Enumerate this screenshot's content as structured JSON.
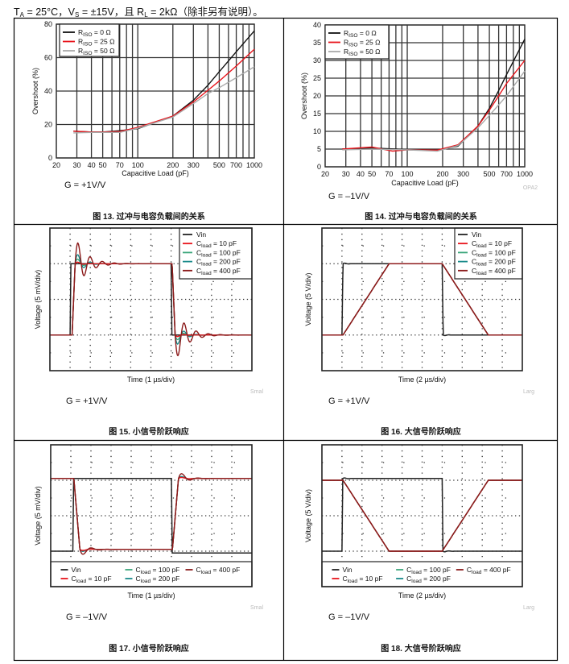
{
  "header": {
    "t1": "T",
    "s1": "A",
    "t2": " = 25°C，V",
    "s2": "S",
    "t3": " = ±15V，且 R",
    "s3": "L",
    "t4": " = 2kΩ（除非另有说明）。"
  },
  "chart_data": [
    {
      "type": "line",
      "title": "图 13. 过冲与电容负载间的关系",
      "note": "G = +1V/V",
      "watermark": "",
      "xlabel": "Capacitive Load (pF)",
      "ylabel": "Overshoot (%)",
      "xscale": "log",
      "xlim": [
        20,
        1000
      ],
      "ylim": [
        0,
        80
      ],
      "xticks": [
        20,
        30,
        40,
        50,
        70,
        100,
        200,
        300,
        500,
        700,
        1000
      ],
      "yticks": [
        0,
        20,
        40,
        60,
        80
      ],
      "grid_x": [
        30,
        40,
        50,
        60,
        70,
        80,
        90,
        100,
        200,
        300,
        400,
        500,
        600,
        700,
        800,
        900
      ],
      "legend": "top-left",
      "series": [
        {
          "main": "R",
          "sub": "ISO",
          "rest": " = 0 Ω",
          "color": "#111111",
          "points": [
            [
              28,
              16
            ],
            [
              40,
              15.5
            ],
            [
              50,
              15.5
            ],
            [
              70,
              16.3
            ],
            [
              100,
              17.5
            ],
            [
              200,
              25
            ],
            [
              300,
              34.5
            ],
            [
              400,
              43.5
            ],
            [
              500,
              51.5
            ],
            [
              700,
              63.5
            ],
            [
              1000,
              76
            ]
          ]
        },
        {
          "main": "R",
          "sub": "ISO",
          "rest": " = 25 Ω",
          "color": "#e8141b",
          "points": [
            [
              28,
              16
            ],
            [
              40,
              15.5
            ],
            [
              50,
              15.5
            ],
            [
              70,
              15.8
            ],
            [
              100,
              18.3
            ],
            [
              200,
              25
            ],
            [
              300,
              33.5
            ],
            [
              400,
              40.5
            ],
            [
              500,
              46
            ],
            [
              700,
              55
            ],
            [
              1000,
              65
            ]
          ]
        },
        {
          "main": "R",
          "sub": "ISO",
          "rest": " = 50 Ω",
          "color": "#aaaaaa",
          "points": [
            [
              28,
              15
            ],
            [
              40,
              15.3
            ],
            [
              50,
              15.3
            ],
            [
              70,
              15.3
            ],
            [
              100,
              17.8
            ],
            [
              200,
              24.5
            ],
            [
              300,
              32.5
            ],
            [
              400,
              38.5
            ],
            [
              500,
              42
            ],
            [
              700,
              48
            ],
            [
              1000,
              54.5
            ]
          ]
        }
      ]
    },
    {
      "type": "line",
      "title": "图 14. 过冲与电容负载间的关系",
      "note": "G = –1V/V",
      "watermark": "OPA2",
      "xlabel": "Capacitive Load (pF)",
      "ylabel": "Overshoot (%)",
      "xscale": "log",
      "xlim": [
        20,
        1000
      ],
      "ylim": [
        0,
        40
      ],
      "xticks": [
        20,
        30,
        40,
        50,
        70,
        100,
        200,
        300,
        500,
        700,
        1000
      ],
      "yticks": [
        0,
        5,
        10,
        15,
        20,
        25,
        30,
        35,
        40
      ],
      "grid_x": [
        30,
        40,
        50,
        60,
        70,
        80,
        90,
        100,
        200,
        300,
        400,
        500,
        600,
        700,
        800,
        900
      ],
      "legend": "top-left",
      "series": [
        {
          "main": "R",
          "sub": "ISO",
          "rest": " = 0 Ω",
          "color": "#111111",
          "points": [
            [
              28,
              5
            ],
            [
              50,
              5.3
            ],
            [
              80,
              5
            ],
            [
              100,
              4.8
            ],
            [
              180,
              4.7
            ],
            [
              200,
              5
            ],
            [
              270,
              5.8
            ],
            [
              400,
              11.5
            ],
            [
              500,
              16.5
            ],
            [
              600,
              21.5
            ],
            [
              700,
              26
            ],
            [
              1000,
              36
            ]
          ]
        },
        {
          "main": "R",
          "sub": "ISO",
          "rest": " = 25 Ω",
          "color": "#e8141b",
          "points": [
            [
              28,
              5
            ],
            [
              50,
              5.6
            ],
            [
              75,
              4.4
            ],
            [
              100,
              4.8
            ],
            [
              180,
              4.7
            ],
            [
              270,
              6.2
            ],
            [
              400,
              11.5
            ],
            [
              500,
              16
            ],
            [
              600,
              20
            ],
            [
              700,
              23.5
            ],
            [
              1000,
              30
            ]
          ]
        },
        {
          "main": "R",
          "sub": "ISO",
          "rest": " = 50 Ω",
          "color": "#aaaaaa",
          "points": [
            [
              28,
              4.8
            ],
            [
              50,
              5
            ],
            [
              100,
              4.8
            ],
            [
              180,
              4.4
            ],
            [
              270,
              6
            ],
            [
              400,
              11
            ],
            [
              500,
              14.5
            ],
            [
              700,
              20
            ],
            [
              1000,
              27
            ]
          ]
        }
      ]
    },
    {
      "type": "line",
      "title": "图 15. 小信号阶跃响应",
      "note": "G = +1V/V",
      "watermark": "Smal",
      "xlabel": "Time (1 µs/div)",
      "ylabel": "Voltage (5 mV/div)",
      "xlim": [
        0,
        10
      ],
      "ylim": [
        0,
        8
      ],
      "legend": "top-right",
      "series": [
        {
          "main": "Vin",
          "sub": "",
          "rest": "",
          "color": "#222222",
          "start": 2,
          "edges": [
            [
              1.0,
              6
            ],
            [
              6.0,
              2
            ]
          ],
          "rise": 0.04,
          "overshoot": 0,
          "period": 0.6,
          "decay": 0.3
        },
        {
          "main": "C",
          "sub": "load",
          "rest": " = 10 pF",
          "color": "#e8141b",
          "start": 2,
          "edges": [
            [
              1.1,
              6
            ],
            [
              6.05,
              2
            ]
          ],
          "rise": 0.15,
          "overshoot": 0.15,
          "period": 0.6,
          "decay": 0.25
        },
        {
          "main": "C",
          "sub": "load",
          "rest": " = 100 pF",
          "color": "#3aa57a",
          "start": 2,
          "edges": [
            [
              1.1,
              6
            ],
            [
              6.05,
              2
            ]
          ],
          "rise": 0.15,
          "overshoot": 0.4,
          "period": 0.6,
          "decay": 0.3
        },
        {
          "main": "C",
          "sub": "load",
          "rest": " = 200 pF",
          "color": "#1a8a8a",
          "start": 2,
          "edges": [
            [
              1.1,
              6
            ],
            [
              6.05,
              2
            ]
          ],
          "rise": 0.15,
          "overshoot": 0.75,
          "period": 0.6,
          "decay": 0.35
        },
        {
          "main": "C",
          "sub": "load",
          "rest": " = 400 pF",
          "color": "#8b1a1a",
          "start": 2,
          "edges": [
            [
              1.1,
              6
            ],
            [
              6.05,
              2
            ]
          ],
          "rise": 0.15,
          "overshoot": 1.5,
          "period": 0.6,
          "decay": 0.55
        }
      ]
    },
    {
      "type": "line",
      "title": "图 16. 大信号阶跃响应",
      "note": "G = +1V/V",
      "watermark": "Larg",
      "xlabel": "Time (2 µs/div)",
      "ylabel": "Voltage (5 V/div)",
      "xlim": [
        0,
        10
      ],
      "ylim": [
        0,
        8
      ],
      "legend": "top-right",
      "series": [
        {
          "main": "Vin",
          "sub": "",
          "rest": "",
          "color": "#222222",
          "start": 2,
          "edges": [
            [
              1.0,
              6
            ],
            [
              6.0,
              2
            ]
          ],
          "rise": 0.05,
          "overshoot": 0.05,
          "period": 0.4,
          "decay": 0.2
        },
        {
          "main": "C",
          "sub": "load",
          "rest": " = 10 pF",
          "color": "#e8141b",
          "start": 2,
          "edges": [
            [
              1.05,
              6
            ],
            [
              6.0,
              2
            ]
          ],
          "rise": 2.3,
          "overshoot": 0,
          "period": 0.6,
          "decay": 0.3
        },
        {
          "main": "C",
          "sub": "load",
          "rest": " = 100 pF",
          "color": "#3aa57a",
          "start": 2,
          "edges": [
            [
              1.05,
              6
            ],
            [
              6.0,
              2
            ]
          ],
          "rise": 2.3,
          "overshoot": 0,
          "period": 0.6,
          "decay": 0.3
        },
        {
          "main": "C",
          "sub": "load",
          "rest": " = 200 pF",
          "color": "#1a8a8a",
          "start": 2,
          "edges": [
            [
              1.05,
              6
            ],
            [
              6.0,
              2
            ]
          ],
          "rise": 2.3,
          "overshoot": 0,
          "period": 0.6,
          "decay": 0.3
        },
        {
          "main": "C",
          "sub": "load",
          "rest": " = 400 pF",
          "color": "#8b1a1a",
          "start": 2,
          "edges": [
            [
              1.05,
              6
            ],
            [
              6.0,
              2
            ]
          ],
          "rise": 2.3,
          "overshoot": 0,
          "period": 0.6,
          "decay": 0.3
        }
      ]
    },
    {
      "type": "line",
      "title": "图 17. 小信号阶跃响应",
      "note": "G = –1V/V",
      "watermark": "Smal",
      "xlabel": "Time (1 µs/div)",
      "ylabel": "Voltage (5 mV/div)",
      "xlim": [
        0,
        10
      ],
      "ylim": [
        0,
        8
      ],
      "legend": "bottom",
      "series": [
        {
          "main": "Vin",
          "sub": "",
          "rest": "",
          "color": "#222222",
          "start": 2,
          "edges": [
            [
              1.1,
              6.1
            ],
            [
              6.0,
              1.9
            ]
          ],
          "rise": 0.04,
          "overshoot": 0,
          "period": 0.6,
          "decay": 0.3
        },
        {
          "main": "C",
          "sub": "load",
          "rest": " = 10 pF",
          "color": "#e8141b",
          "start": 6.1,
          "edges": [
            [
              1.15,
              2.1
            ],
            [
              6.05,
              6.1
            ]
          ],
          "rise": 0.3,
          "overshoot": 0.1,
          "period": 0.8,
          "decay": 0.3
        },
        {
          "main": "C",
          "sub": "load",
          "rest": " = 100 pF",
          "color": "#3aa57a",
          "start": 6.1,
          "edges": [
            [
              1.15,
              2.1
            ],
            [
              6.05,
              6.1
            ]
          ],
          "rise": 0.3,
          "overshoot": 0.15,
          "period": 0.8,
          "decay": 0.3
        },
        {
          "main": "C",
          "sub": "load",
          "rest": " = 200 pF",
          "color": "#1a8a8a",
          "start": 6.1,
          "edges": [
            [
              1.15,
              2.1
            ],
            [
              6.05,
              6.1
            ]
          ],
          "rise": 0.3,
          "overshoot": 0.2,
          "period": 0.8,
          "decay": 0.3
        },
        {
          "main": "C",
          "sub": "load",
          "rest": " = 400 pF",
          "color": "#8b1a1a",
          "start": 6.1,
          "edges": [
            [
              1.15,
              2.1
            ],
            [
              6.05,
              6.1
            ]
          ],
          "rise": 0.3,
          "overshoot": 0.45,
          "period": 0.8,
          "decay": 0.35
        }
      ]
    },
    {
      "type": "line",
      "title": "图 18. 大信号阶跃响应",
      "note": "G = –1V/V",
      "watermark": "Larg",
      "xlabel": "Time (2 µs/div)",
      "ylabel": "Voltage (5 V/div)",
      "xlim": [
        0,
        10
      ],
      "ylim": [
        0,
        8
      ],
      "legend": "bottom",
      "series": [
        {
          "main": "Vin",
          "sub": "",
          "rest": "",
          "color": "#222222",
          "start": 2,
          "edges": [
            [
              1.0,
              6.1
            ],
            [
              6.0,
              2
            ]
          ],
          "rise": 0.04,
          "overshoot": 0.05,
          "period": 0.4,
          "decay": 0.2
        },
        {
          "main": "C",
          "sub": "load",
          "rest": " = 10 pF",
          "color": "#e8141b",
          "start": 6,
          "edges": [
            [
              1.05,
              2
            ],
            [
              6.0,
              6
            ]
          ],
          "rise": 2.3,
          "overshoot": 0,
          "period": 0.6,
          "decay": 0.3
        },
        {
          "main": "C",
          "sub": "load",
          "rest": " = 100 pF",
          "color": "#3aa57a",
          "start": 6,
          "edges": [
            [
              1.05,
              2
            ],
            [
              6.0,
              6
            ]
          ],
          "rise": 2.3,
          "overshoot": 0,
          "period": 0.6,
          "decay": 0.3
        },
        {
          "main": "C",
          "sub": "load",
          "rest": " = 200 pF",
          "color": "#1a8a8a",
          "start": 6,
          "edges": [
            [
              1.05,
              2
            ],
            [
              6.0,
              6
            ]
          ],
          "rise": 2.3,
          "overshoot": 0,
          "period": 0.6,
          "decay": 0.3
        },
        {
          "main": "C",
          "sub": "load",
          "rest": " = 400 pF",
          "color": "#8b1a1a",
          "start": 6,
          "edges": [
            [
              1.05,
              2
            ],
            [
              6.0,
              6
            ]
          ],
          "rise": 2.3,
          "overshoot": 0,
          "period": 0.6,
          "decay": 0.3
        }
      ]
    }
  ]
}
